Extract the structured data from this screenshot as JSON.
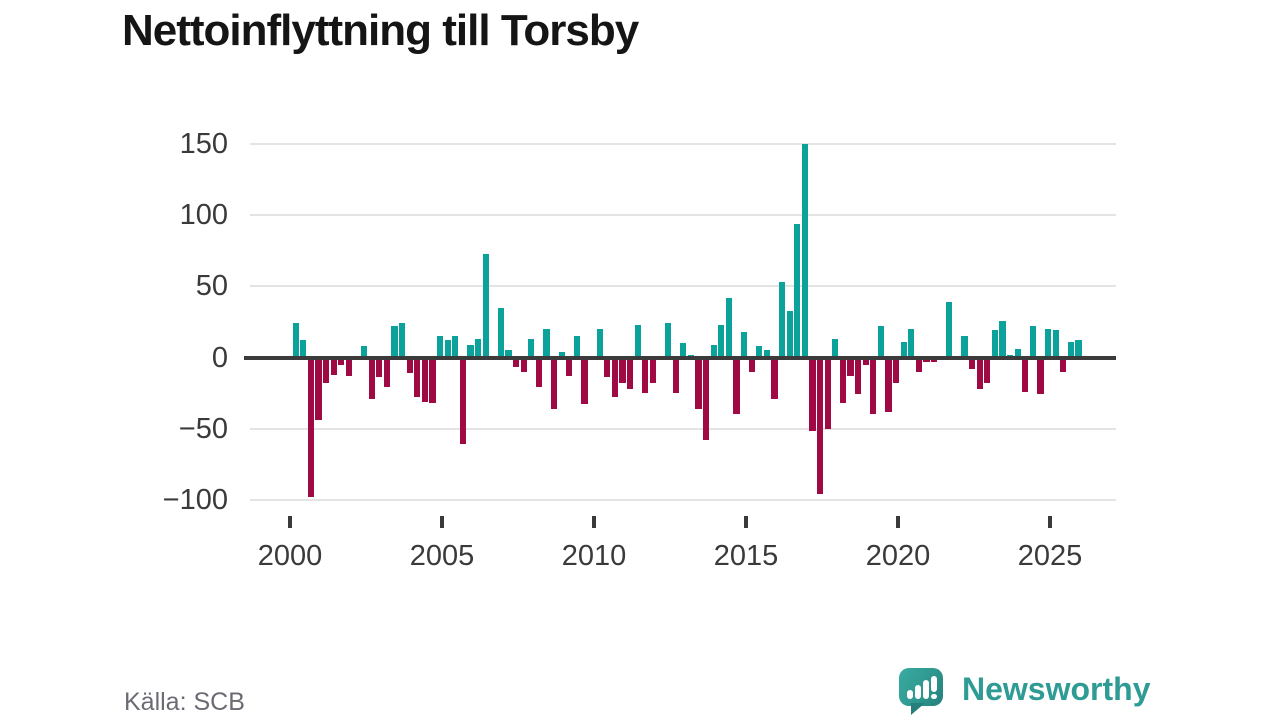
{
  "title": "Nettoinflyttning till Torsby",
  "source": "Källa: SCB",
  "logo": {
    "brand": "Newsworthy"
  },
  "chart_data": {
    "type": "bar",
    "title": "Nettoinflyttning till Torsby",
    "xlabel": "",
    "ylabel": "",
    "period": "quarterly",
    "start": "2000-Q1",
    "end": "2025-Q4",
    "values": [
      24,
      12,
      -98,
      -44,
      -18,
      -12,
      -5,
      -13,
      0,
      8,
      -29,
      -14,
      -21,
      22,
      24,
      -11,
      -28,
      -31,
      -32,
      15,
      12,
      15,
      -61,
      9,
      13,
      73,
      0,
      35,
      5,
      -7,
      -10,
      13,
      -21,
      20,
      -36,
      4,
      -13,
      15,
      -33,
      0,
      20,
      -14,
      -28,
      -18,
      -22,
      23,
      -25,
      -18,
      0,
      24,
      -25,
      10,
      2,
      -36,
      -58,
      9,
      23,
      42,
      -40,
      18,
      -10,
      8,
      5,
      -29,
      53,
      33,
      94,
      150,
      -52,
      -96,
      -50,
      13,
      -32,
      -13,
      -26,
      -5,
      -40,
      22,
      -38,
      -18,
      11,
      20,
      -10,
      -3,
      -3,
      0,
      39,
      0,
      15,
      -8,
      -22,
      -18,
      19,
      26,
      2,
      6,
      -24,
      22,
      -26,
      20,
      19,
      -10,
      11,
      12
    ],
    "yticks": [
      150,
      100,
      50,
      0,
      -50,
      -100
    ],
    "xticks": [
      2000,
      2005,
      2010,
      2015,
      2020,
      2025
    ],
    "ylim": [
      -112,
      160
    ],
    "grid": true,
    "legend": "none",
    "colors": {
      "positive": "#0ba29b",
      "negative": "#a00a44",
      "axis": "#3b3b3b",
      "gridline": "#e4e4e4"
    }
  }
}
